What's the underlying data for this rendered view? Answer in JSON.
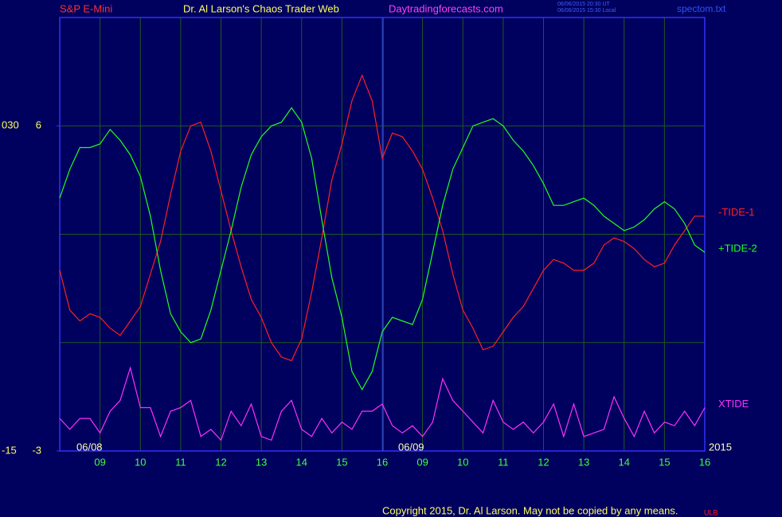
{
  "chart_data": {
    "type": "line",
    "categories": [
      null,
      null,
      null,
      null,
      "09",
      null,
      null,
      null,
      "10",
      null,
      null,
      null,
      "11",
      null,
      null,
      null,
      "12",
      null,
      null,
      null,
      "13",
      null,
      null,
      null,
      "14",
      null,
      null,
      null,
      "15",
      null,
      null,
      null,
      "16",
      null,
      null,
      null,
      "09",
      null,
      null,
      null,
      "10",
      null,
      null,
      null,
      "11",
      null,
      null,
      null,
      "12",
      null,
      null,
      null,
      "13",
      null,
      null,
      null,
      "14",
      null,
      null,
      null,
      "15",
      null,
      null,
      null,
      "16"
    ],
    "series": [
      {
        "name": "-TIDE-1",
        "color": "#ff2020",
        "values": [
          2.0,
          0.9,
          0.6,
          0.8,
          0.7,
          0.4,
          0.2,
          0.6,
          1.0,
          1.9,
          2.8,
          4.1,
          5.3,
          6.0,
          6.1,
          5.3,
          4.2,
          3.1,
          2.1,
          1.2,
          0.7,
          0.0,
          -0.4,
          -0.5,
          0.1,
          1.4,
          2.9,
          4.5,
          5.5,
          6.7,
          7.4,
          6.7,
          5.1,
          5.8,
          5.7,
          5.3,
          4.8,
          4.0,
          3.1,
          1.9,
          0.9,
          0.4,
          -0.2,
          -0.1,
          0.3,
          0.7,
          1.0,
          1.5,
          2.0,
          2.3,
          2.2,
          2.0,
          2.0,
          2.2,
          2.7,
          2.9,
          2.8,
          2.6,
          2.3,
          2.1,
          2.2,
          2.7,
          3.1,
          3.5,
          3.5
        ]
      },
      {
        "name": "+TIDE-2",
        "color": "#20ff20",
        "values": [
          4.0,
          4.8,
          5.4,
          5.4,
          5.5,
          5.9,
          5.6,
          5.2,
          4.6,
          3.5,
          2.0,
          0.8,
          0.3,
          0.0,
          0.1,
          0.9,
          2.0,
          3.1,
          4.3,
          5.2,
          5.7,
          6.0,
          6.1,
          6.5,
          6.1,
          5.1,
          3.4,
          1.8,
          0.7,
          -0.8,
          -1.3,
          -0.8,
          0.3,
          0.7,
          0.6,
          0.5,
          1.2,
          2.5,
          3.8,
          4.8,
          5.4,
          6.0,
          6.1,
          6.2,
          6.0,
          5.6,
          5.3,
          4.9,
          4.4,
          3.8,
          3.8,
          3.9,
          4.0,
          3.8,
          3.5,
          3.3,
          3.1,
          3.2,
          3.4,
          3.7,
          3.9,
          3.7,
          3.3,
          2.7,
          2.5
        ]
      },
      {
        "name": "XTIDE",
        "color": "#ff30ff",
        "values": [
          -2.1,
          -2.4,
          -2.1,
          -2.1,
          -2.5,
          -1.9,
          -1.6,
          -0.7,
          -1.8,
          -1.8,
          -2.6,
          -1.9,
          -1.8,
          -1.6,
          -2.6,
          -2.4,
          -2.7,
          -1.9,
          -2.3,
          -1.7,
          -2.6,
          -2.7,
          -1.9,
          -1.6,
          -2.4,
          -2.6,
          -2.1,
          -2.5,
          -2.2,
          -2.4,
          -1.9,
          -1.9,
          -1.7,
          -2.3,
          -2.5,
          -2.3,
          -2.6,
          -2.2,
          -1.0,
          -1.6,
          -1.9,
          -2.2,
          -2.5,
          -1.6,
          -2.2,
          -2.4,
          -2.2,
          -2.5,
          -2.2,
          -1.7,
          -2.6,
          -1.7,
          -2.6,
          -2.5,
          -2.4,
          -1.5,
          -2.1,
          -2.6,
          -1.9,
          -2.5,
          -2.2,
          -2.3,
          -1.9,
          -2.3,
          -1.8
        ]
      }
    ],
    "ylim": [
      -3,
      9
    ],
    "yticks": [
      -3,
      6
    ],
    "ygrid": [
      0,
      3,
      6
    ],
    "y2lim": [
      -15,
      45
    ],
    "y2ticks": [
      {
        "value": 30,
        "label": "030"
      },
      -15
    ],
    "grid": true,
    "annotations": [
      {
        "text": "S&P E-Mini",
        "color": "#ff3030"
      },
      {
        "text": "Dr. Al Larson's Chaos Trader Web",
        "color": "#ffff60"
      },
      {
        "text": "Daytradingforecasts.com",
        "color": "#ff40ff"
      },
      {
        "text": "06/06/2015 20:30 UT",
        "color": "#4060ff"
      },
      {
        "text": "06/06/2015 15:30 Local",
        "color": "#4060ff"
      },
      {
        "text": "spectom.txt",
        "color": "#3050ff"
      },
      {
        "text": "06/08",
        "color": "#ffffc0"
      },
      {
        "text": "06/09",
        "color": "#ffffc0"
      },
      {
        "text": "2015",
        "color": "#ffffc0"
      },
      {
        "text": "Copyright 2015, Dr. Al Larson. May not be copied by any means.",
        "color": "#ffff60"
      },
      {
        "text": "ULB",
        "color": "#ff2020"
      }
    ]
  }
}
